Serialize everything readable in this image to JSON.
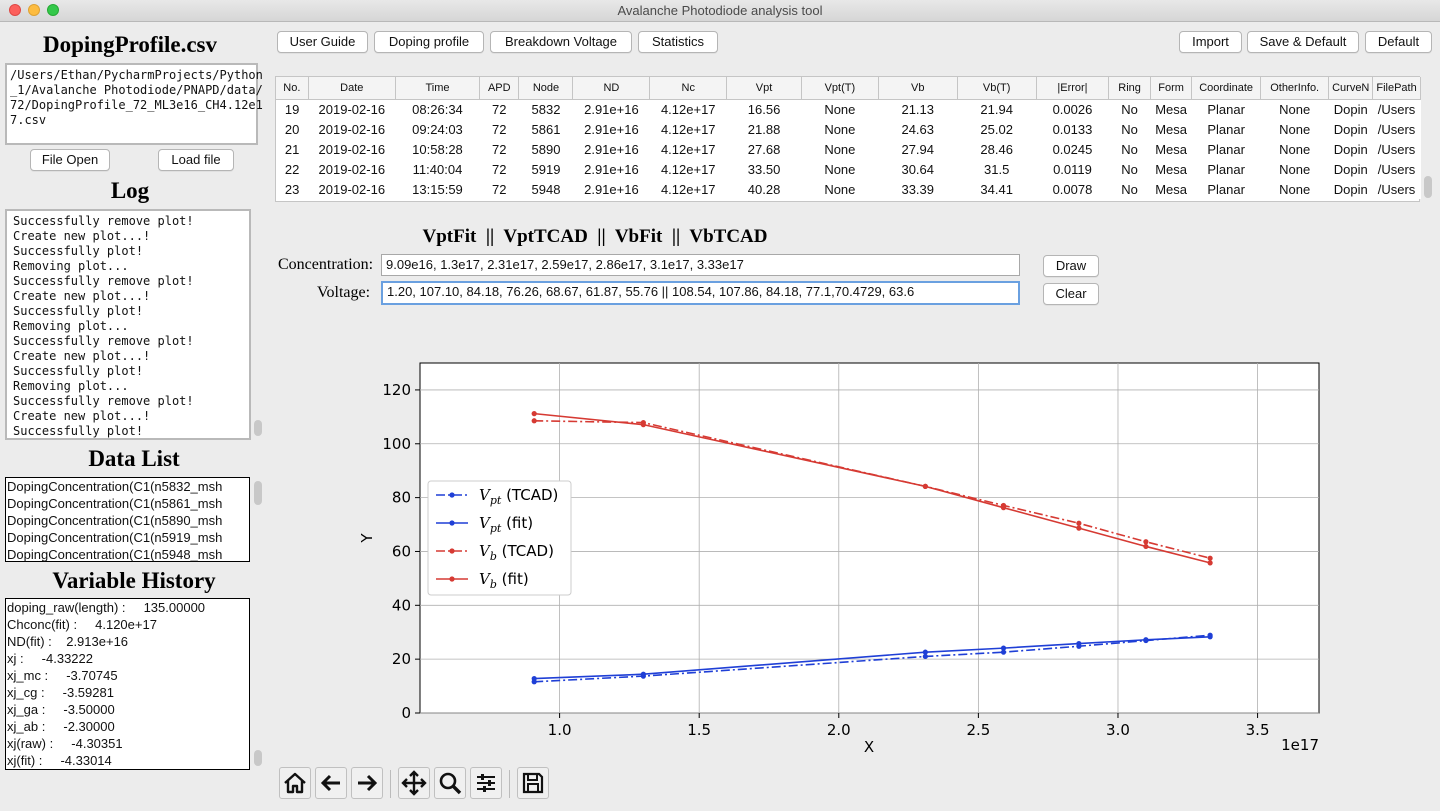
{
  "window": {
    "title": "Avalanche Photodiode analysis tool"
  },
  "left": {
    "file_title": "DopingProfile.csv",
    "file_path_lines": [
      "/Users/Ethan/PycharmProjects/Python",
      "_1/Avalanche Photodiode/PNAPD/data/",
      "72/DopingProfile_72_ML3e16_CH4.12e1",
      "7.csv"
    ],
    "file_open": "File Open",
    "load_file": "Load file",
    "log_title": "Log",
    "log_lines": [
      "Successfully remove plot!",
      "Create new plot...!",
      "Successfully plot!",
      "Removing plot...",
      "Successfully remove plot!",
      "Create new plot...!",
      "Successfully plot!",
      "Removing plot...",
      "Successfully remove plot!",
      "Create new plot...!",
      "Successfully plot!",
      "Removing plot...",
      "Successfully remove plot!",
      "Create new plot...!",
      "Successfully plot!"
    ],
    "datalist_title": "Data List",
    "datalist_items": [
      "DopingConcentration(C1(n5832_msh",
      "DopingConcentration(C1(n5861_msh",
      "DopingConcentration(C1(n5890_msh",
      "DopingConcentration(C1(n5919_msh",
      "DopingConcentration(C1(n5948_msh"
    ],
    "varhist_title": "Variable History",
    "varhist_lines": [
      "doping_raw(length) :     135.00000",
      "Chconc(fit) :     4.120e+17",
      "ND(fit) :    2.913e+16",
      "xj :     -4.33222",
      "xj_mc :     -3.70745",
      "xj_cg :     -3.59281",
      "xj_ga :     -3.50000",
      "xj_ab :     -2.30000",
      "xj(raw) :     -4.30351",
      "xj(fit) :     -4.33014"
    ]
  },
  "toolbar": {
    "user_guide": "User Guide",
    "doping_profile": "Doping profile",
    "breakdown_voltage": "Breakdown Voltage",
    "statistics": "Statistics",
    "import": "Import",
    "save_default": "Save & Default",
    "default": "Default"
  },
  "table": {
    "headers": [
      "No.",
      "Date",
      "Time",
      "APD",
      "Node",
      "ND",
      "Nc",
      "Vpt",
      "Vpt(T)",
      "Vb",
      "Vb(T)",
      "|Error|",
      "Ring",
      "Form",
      "Coordinate",
      "OtherInfo.",
      "CurveN",
      "FilePath"
    ],
    "rows": [
      [
        "19",
        "2019-02-16",
        "08:26:34",
        "72",
        "5832",
        "2.91e+16",
        "4.12e+17",
        "16.56",
        "None",
        "21.13",
        "21.94",
        "0.0026",
        "No",
        "Mesa",
        "Planar",
        "None",
        "Dopin",
        "/Users"
      ],
      [
        "20",
        "2019-02-16",
        "09:24:03",
        "72",
        "5861",
        "2.91e+16",
        "4.12e+17",
        "21.88",
        "None",
        "24.63",
        "25.02",
        "0.0133",
        "No",
        "Mesa",
        "Planar",
        "None",
        "Dopin",
        "/Users"
      ],
      [
        "21",
        "2019-02-16",
        "10:58:28",
        "72",
        "5890",
        "2.91e+16",
        "4.12e+17",
        "27.68",
        "None",
        "27.94",
        "28.46",
        "0.0245",
        "No",
        "Mesa",
        "Planar",
        "None",
        "Dopin",
        "/Users"
      ],
      [
        "22",
        "2019-02-16",
        "11:40:04",
        "72",
        "5919",
        "2.91e+16",
        "4.12e+17",
        "33.50",
        "None",
        "30.64",
        "31.5",
        "0.0119",
        "No",
        "Mesa",
        "Planar",
        "None",
        "Dopin",
        "/Users"
      ],
      [
        "23",
        "2019-02-16",
        "13:15:59",
        "72",
        "5948",
        "2.91e+16",
        "4.12e+17",
        "40.28",
        "None",
        "33.39",
        "34.41",
        "0.0078",
        "No",
        "Mesa",
        "Planar",
        "None",
        "Dopin",
        "/Users"
      ]
    ]
  },
  "inputs": {
    "heading": "VptFit  ||  VptTCAD  ||  VbFit  ||  VbTCAD",
    "concentration_label": "Concentration:",
    "concentration_value": "9.09e16, 1.3e17, 2.31e17, 2.59e17, 2.86e17, 3.1e17, 3.33e17",
    "voltage_label": "Voltage:",
    "voltage_value": "1.20, 107.10, 84.18, 76.26, 68.67, 61.87, 55.76 || 108.54, 107.86, 84.18, 77.1,70.4729, 63.6",
    "draw": "Draw",
    "clear": "Clear"
  },
  "chart_data": {
    "type": "line",
    "xlabel": "X",
    "ylabel": "Y",
    "x_offset_label": "1e17",
    "xlim": [
      0.5,
      3.72
    ],
    "ylim": [
      0,
      130
    ],
    "xticks": [
      1.0,
      1.5,
      2.0,
      2.5,
      3.0,
      3.5
    ],
    "yticks": [
      0,
      20,
      40,
      60,
      80,
      100,
      120
    ],
    "grid": true,
    "legend_position": "center-left",
    "series": [
      {
        "name_base": "V",
        "name_sub": "pt",
        "name_suffix": "(TCAD)",
        "color": "#1f3fd6",
        "style": "dashdot",
        "x": [
          0.909,
          1.3,
          2.31,
          2.59,
          2.86,
          3.1,
          3.33
        ],
        "y": [
          11.6,
          13.7,
          21.0,
          22.6,
          24.8,
          26.9,
          28.9
        ]
      },
      {
        "name_base": "V",
        "name_sub": "pt",
        "name_suffix": "(fit)",
        "color": "#1f3fd6",
        "style": "solid",
        "x": [
          0.909,
          1.3,
          2.31,
          2.59,
          2.86,
          3.1,
          3.33
        ],
        "y": [
          12.8,
          14.4,
          22.6,
          24.1,
          25.8,
          27.2,
          28.3
        ]
      },
      {
        "name_base": "V",
        "name_sub": "b",
        "name_suffix": "(TCAD)",
        "color": "#d63a33",
        "style": "dashdot",
        "x": [
          0.909,
          1.3,
          2.31,
          2.59,
          2.86,
          3.1,
          3.33
        ],
        "y": [
          108.54,
          107.86,
          84.18,
          77.1,
          70.47,
          63.6,
          57.5
        ]
      },
      {
        "name_base": "V",
        "name_sub": "b",
        "name_suffix": "(fit)",
        "color": "#d63a33",
        "style": "solid",
        "x": [
          0.909,
          1.3,
          2.31,
          2.59,
          2.86,
          3.1,
          3.33
        ],
        "y": [
          111.2,
          107.1,
          84.18,
          76.26,
          68.67,
          61.87,
          55.76
        ]
      }
    ]
  },
  "nav_toolbar": {
    "icons": [
      "home-icon",
      "back-arrow-icon",
      "forward-arrow-icon",
      "pan-icon",
      "zoom-icon",
      "configure-subplots-icon",
      "save-icon"
    ]
  }
}
